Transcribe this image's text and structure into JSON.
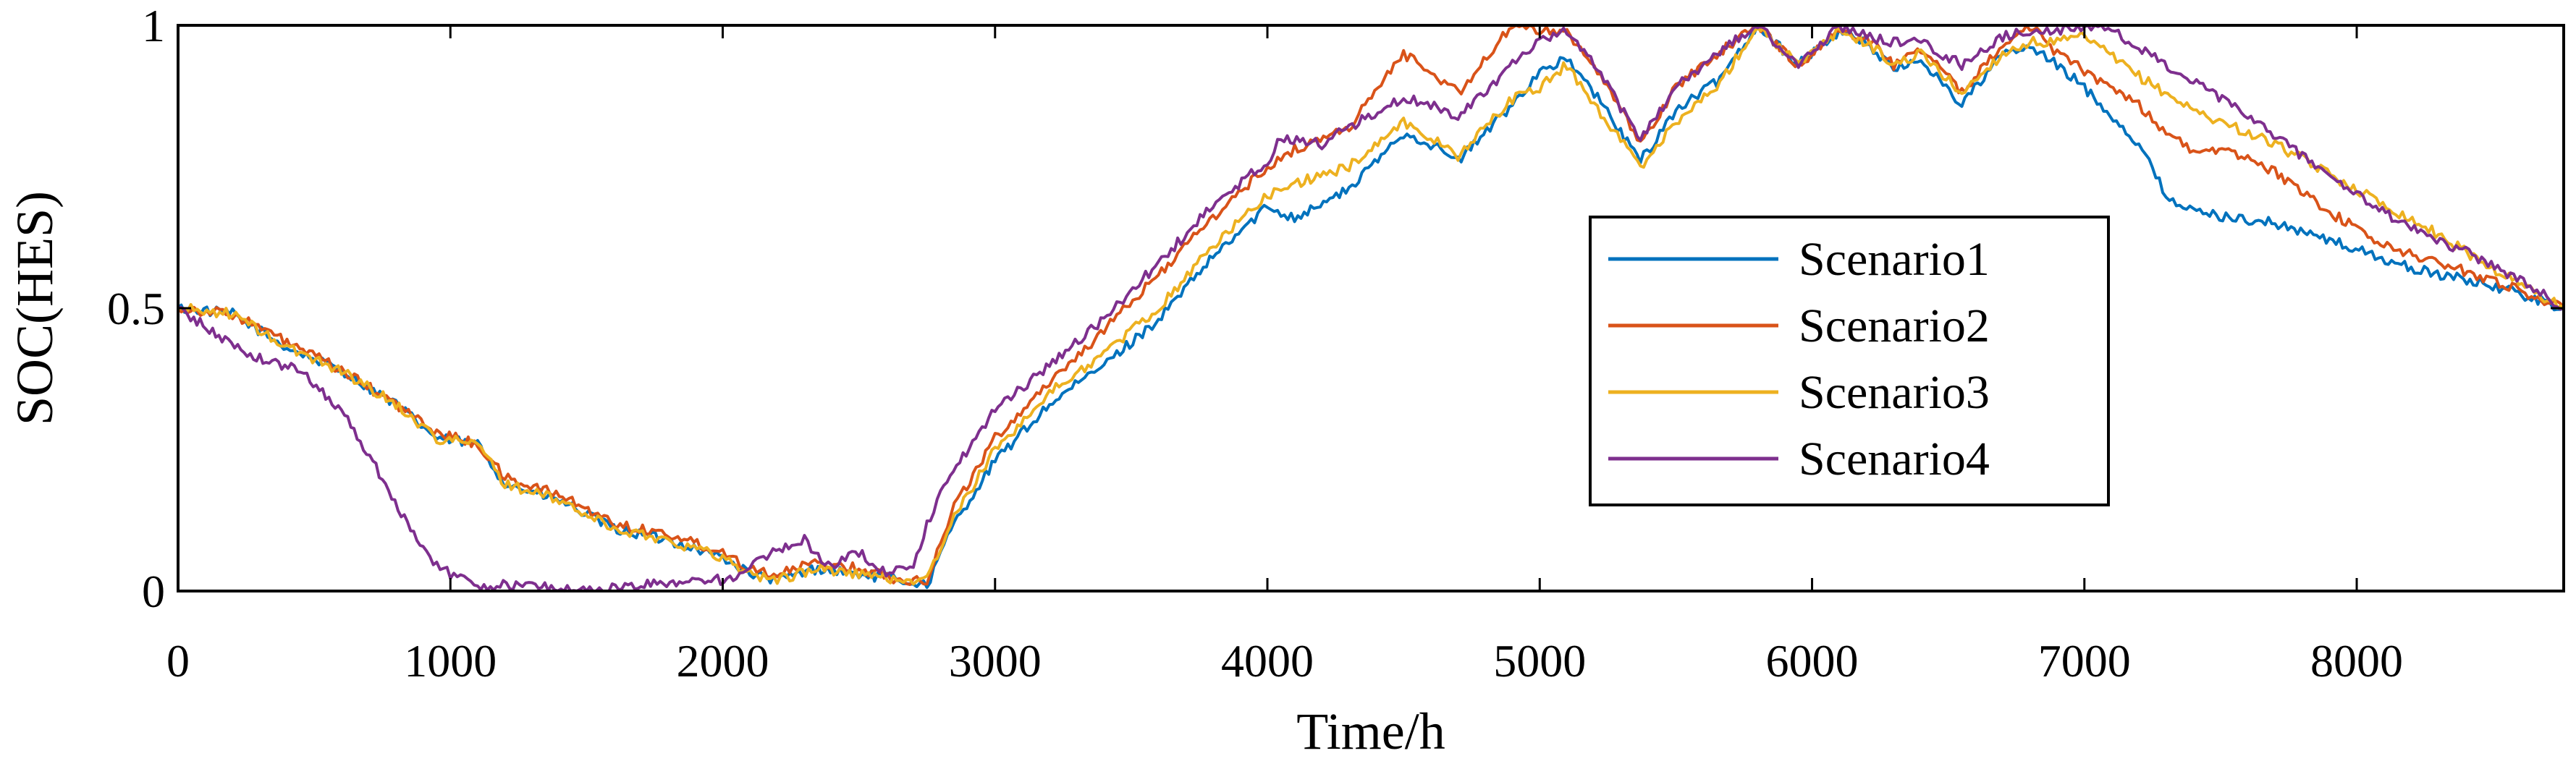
{
  "chart_data": {
    "type": "line",
    "xlabel": "Time/h",
    "ylabel": "SOC(HES)",
    "xlim": [
      0,
      8760
    ],
    "ylim": [
      0,
      1
    ],
    "xticks": [
      0,
      1000,
      2000,
      3000,
      4000,
      5000,
      6000,
      7000,
      8000
    ],
    "yticks": [
      0,
      0.5,
      1
    ],
    "xtick_labels": [
      "0",
      "1000",
      "2000",
      "3000",
      "4000",
      "5000",
      "6000",
      "7000",
      "8000"
    ],
    "ytick_labels": [
      "0",
      "0.5",
      "1"
    ],
    "grid": false,
    "legend_position": "center-right",
    "series": [
      {
        "name": "Scenario1",
        "color": "#0072BD",
        "points": [
          [
            0,
            0.5
          ],
          [
            200,
            0.49
          ],
          [
            400,
            0.43
          ],
          [
            600,
            0.39
          ],
          [
            800,
            0.33
          ],
          [
            950,
            0.27
          ],
          [
            1100,
            0.26
          ],
          [
            1200,
            0.19
          ],
          [
            1400,
            0.16
          ],
          [
            1600,
            0.11
          ],
          [
            1800,
            0.09
          ],
          [
            2000,
            0.06
          ],
          [
            2100,
            0.03
          ],
          [
            2200,
            0.02
          ],
          [
            2350,
            0.04
          ],
          [
            2500,
            0.03
          ],
          [
            2650,
            0.02
          ],
          [
            2750,
            0.01
          ],
          [
            2850,
            0.12
          ],
          [
            3000,
            0.23
          ],
          [
            3200,
            0.33
          ],
          [
            3400,
            0.4
          ],
          [
            3600,
            0.48
          ],
          [
            3800,
            0.59
          ],
          [
            4000,
            0.68
          ],
          [
            4100,
            0.66
          ],
          [
            4300,
            0.71
          ],
          [
            4500,
            0.81
          ],
          [
            4600,
            0.79
          ],
          [
            4700,
            0.76
          ],
          [
            4900,
            0.86
          ],
          [
            5000,
            0.92
          ],
          [
            5100,
            0.94
          ],
          [
            5200,
            0.88
          ],
          [
            5370,
            0.76
          ],
          [
            5500,
            0.85
          ],
          [
            5650,
            0.9
          ],
          [
            5800,
            1.0
          ],
          [
            5950,
            0.93
          ],
          [
            6100,
            0.99
          ],
          [
            6200,
            0.97
          ],
          [
            6300,
            0.92
          ],
          [
            6400,
            0.94
          ],
          [
            6550,
            0.86
          ],
          [
            6700,
            0.95
          ],
          [
            6800,
            0.96
          ],
          [
            6900,
            0.93
          ],
          [
            7000,
            0.89
          ],
          [
            7200,
            0.79
          ],
          [
            7300,
            0.7
          ],
          [
            7400,
            0.67
          ],
          [
            7700,
            0.65
          ],
          [
            7900,
            0.62
          ],
          [
            8200,
            0.57
          ],
          [
            8500,
            0.54
          ],
          [
            8760,
            0.5
          ]
        ]
      },
      {
        "name": "Scenario2",
        "color": "#D95319",
        "points": [
          [
            0,
            0.5
          ],
          [
            200,
            0.49
          ],
          [
            400,
            0.44
          ],
          [
            600,
            0.39
          ],
          [
            800,
            0.33
          ],
          [
            950,
            0.28
          ],
          [
            1100,
            0.26
          ],
          [
            1200,
            0.2
          ],
          [
            1400,
            0.17
          ],
          [
            1600,
            0.12
          ],
          [
            1800,
            0.1
          ],
          [
            2000,
            0.07
          ],
          [
            2100,
            0.04
          ],
          [
            2200,
            0.03
          ],
          [
            2350,
            0.05
          ],
          [
            2500,
            0.04
          ],
          [
            2650,
            0.02
          ],
          [
            2750,
            0.02
          ],
          [
            2850,
            0.15
          ],
          [
            3000,
            0.27
          ],
          [
            3200,
            0.37
          ],
          [
            3400,
            0.46
          ],
          [
            3600,
            0.56
          ],
          [
            3800,
            0.66
          ],
          [
            4000,
            0.75
          ],
          [
            4100,
            0.78
          ],
          [
            4300,
            0.82
          ],
          [
            4500,
            0.95
          ],
          [
            4600,
            0.92
          ],
          [
            4700,
            0.88
          ],
          [
            4900,
            1.0
          ],
          [
            5000,
            0.99
          ],
          [
            5100,
            0.99
          ],
          [
            5200,
            0.93
          ],
          [
            5370,
            0.79
          ],
          [
            5500,
            0.89
          ],
          [
            5650,
            0.95
          ],
          [
            5800,
            1.0
          ],
          [
            5950,
            0.93
          ],
          [
            6100,
            0.99
          ],
          [
            6200,
            0.98
          ],
          [
            6300,
            0.93
          ],
          [
            6400,
            0.96
          ],
          [
            6550,
            0.88
          ],
          [
            6700,
            0.97
          ],
          [
            6800,
            1.0
          ],
          [
            6900,
            0.95
          ],
          [
            7000,
            0.92
          ],
          [
            7200,
            0.86
          ],
          [
            7300,
            0.81
          ],
          [
            7400,
            0.78
          ],
          [
            7600,
            0.77
          ],
          [
            7700,
            0.74
          ],
          [
            7900,
            0.67
          ],
          [
            8100,
            0.61
          ],
          [
            8300,
            0.58
          ],
          [
            8500,
            0.55
          ],
          [
            8760,
            0.5
          ]
        ]
      },
      {
        "name": "Scenario3",
        "color": "#EDB120",
        "points": [
          [
            0,
            0.5
          ],
          [
            200,
            0.49
          ],
          [
            400,
            0.43
          ],
          [
            600,
            0.39
          ],
          [
            800,
            0.33
          ],
          [
            950,
            0.27
          ],
          [
            1100,
            0.26
          ],
          [
            1200,
            0.19
          ],
          [
            1400,
            0.16
          ],
          [
            1600,
            0.11
          ],
          [
            1800,
            0.09
          ],
          [
            2000,
            0.06
          ],
          [
            2100,
            0.03
          ],
          [
            2200,
            0.02
          ],
          [
            2350,
            0.04
          ],
          [
            2500,
            0.03
          ],
          [
            2650,
            0.02
          ],
          [
            2750,
            0.02
          ],
          [
            2850,
            0.13
          ],
          [
            3000,
            0.25
          ],
          [
            3200,
            0.35
          ],
          [
            3400,
            0.42
          ],
          [
            3600,
            0.5
          ],
          [
            3800,
            0.61
          ],
          [
            4000,
            0.7
          ],
          [
            4100,
            0.72
          ],
          [
            4300,
            0.75
          ],
          [
            4500,
            0.83
          ],
          [
            4600,
            0.8
          ],
          [
            4700,
            0.77
          ],
          [
            4900,
            0.87
          ],
          [
            5000,
            0.89
          ],
          [
            5100,
            0.93
          ],
          [
            5200,
            0.86
          ],
          [
            5370,
            0.75
          ],
          [
            5500,
            0.83
          ],
          [
            5650,
            0.89
          ],
          [
            5800,
            1.0
          ],
          [
            5950,
            0.93
          ],
          [
            6100,
            0.99
          ],
          [
            6200,
            0.97
          ],
          [
            6300,
            0.93
          ],
          [
            6400,
            0.95
          ],
          [
            6550,
            0.88
          ],
          [
            6700,
            0.95
          ],
          [
            6800,
            0.97
          ],
          [
            6900,
            0.97
          ],
          [
            7000,
            0.98
          ],
          [
            7200,
            0.91
          ],
          [
            7400,
            0.85
          ],
          [
            7700,
            0.79
          ],
          [
            8000,
            0.71
          ],
          [
            8300,
            0.63
          ],
          [
            8500,
            0.57
          ],
          [
            8760,
            0.5
          ]
        ]
      },
      {
        "name": "Scenario4",
        "color": "#7E2F8E",
        "points": [
          [
            0,
            0.5
          ],
          [
            150,
            0.45
          ],
          [
            300,
            0.41
          ],
          [
            450,
            0.39
          ],
          [
            600,
            0.32
          ],
          [
            750,
            0.2
          ],
          [
            900,
            0.07
          ],
          [
            1000,
            0.03
          ],
          [
            1100,
            0.01
          ],
          [
            1300,
            0.01
          ],
          [
            1500,
            0.0
          ],
          [
            1700,
            0.01
          ],
          [
            1900,
            0.02
          ],
          [
            2050,
            0.02
          ],
          [
            2150,
            0.06
          ],
          [
            2300,
            0.09
          ],
          [
            2400,
            0.04
          ],
          [
            2500,
            0.07
          ],
          [
            2600,
            0.03
          ],
          [
            2700,
            0.05
          ],
          [
            2800,
            0.18
          ],
          [
            3000,
            0.32
          ],
          [
            3200,
            0.4
          ],
          [
            3400,
            0.48
          ],
          [
            3600,
            0.58
          ],
          [
            3800,
            0.68
          ],
          [
            4000,
            0.76
          ],
          [
            4050,
            0.8
          ],
          [
            4200,
            0.79
          ],
          [
            4300,
            0.82
          ],
          [
            4500,
            0.87
          ],
          [
            4600,
            0.86
          ],
          [
            4700,
            0.84
          ],
          [
            4900,
            0.93
          ],
          [
            5000,
            0.97
          ],
          [
            5100,
            0.99
          ],
          [
            5200,
            0.93
          ],
          [
            5370,
            0.8
          ],
          [
            5500,
            0.89
          ],
          [
            5650,
            0.95
          ],
          [
            5800,
            1.0
          ],
          [
            5950,
            0.93
          ],
          [
            6100,
            1.0
          ],
          [
            6200,
            0.98
          ],
          [
            6300,
            0.97
          ],
          [
            6400,
            0.97
          ],
          [
            6550,
            0.93
          ],
          [
            6700,
            0.98
          ],
          [
            6800,
            0.99
          ],
          [
            6900,
            0.99
          ],
          [
            7000,
            1.0
          ],
          [
            7100,
            0.99
          ],
          [
            7200,
            0.96
          ],
          [
            7400,
            0.9
          ],
          [
            7600,
            0.84
          ],
          [
            7800,
            0.77
          ],
          [
            8000,
            0.7
          ],
          [
            8200,
            0.64
          ],
          [
            8400,
            0.6
          ],
          [
            8600,
            0.55
          ],
          [
            8760,
            0.5
          ]
        ]
      }
    ]
  }
}
